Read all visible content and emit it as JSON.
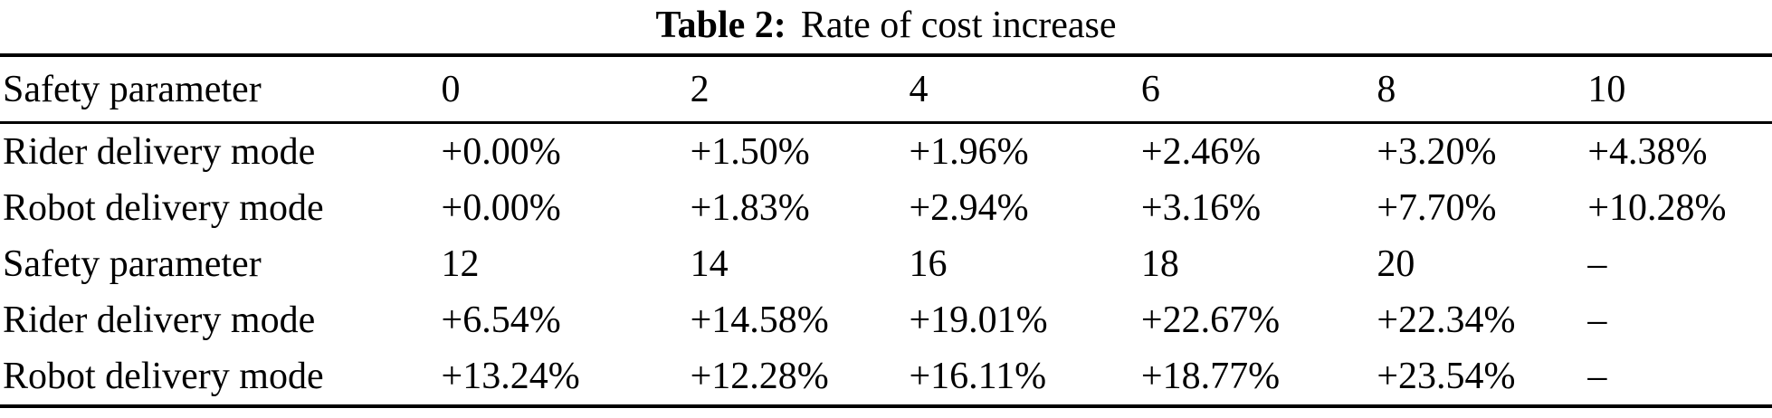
{
  "caption": {
    "label": "Table 2:",
    "text": "Rate of cost increase"
  },
  "table": {
    "rows": [
      {
        "cells": [
          "Safety parameter",
          "0",
          "2",
          "4",
          "6",
          "8",
          "10"
        ]
      },
      {
        "cells": [
          "Rider delivery mode",
          "+0.00%",
          "+1.50%",
          "+1.96%",
          "+2.46%",
          "+3.20%",
          "+4.38%"
        ]
      },
      {
        "cells": [
          "Robot delivery mode",
          "+0.00%",
          "+1.83%",
          "+2.94%",
          "+3.16%",
          "+7.70%",
          "+10.28%"
        ]
      },
      {
        "cells": [
          "Safety parameter",
          "12",
          "14",
          "16",
          "18",
          "20",
          "–"
        ]
      },
      {
        "cells": [
          "Rider delivery mode",
          "+6.54%",
          "+14.58%",
          "+19.01%",
          "+22.67%",
          "+22.34%",
          "–"
        ]
      },
      {
        "cells": [
          "Robot delivery mode",
          "+13.24%",
          "+12.28%",
          "+16.11%",
          "+18.77%",
          "+23.54%",
          "–"
        ]
      }
    ],
    "column_widths_percent": [
      24.9,
      14.05,
      12.35,
      13.1,
      13.3,
      11.9,
      10.4
    ]
  },
  "chart_data": {
    "type": "table",
    "title": "Table 2: Rate of cost increase",
    "x_variable": "Safety parameter",
    "x": [
      0,
      2,
      4,
      6,
      8,
      10,
      12,
      14,
      16,
      18,
      20
    ],
    "series": [
      {
        "name": "Rider delivery mode",
        "values_percent": [
          0.0,
          1.5,
          1.96,
          2.46,
          3.2,
          4.38,
          6.54,
          14.58,
          19.01,
          22.67,
          22.34
        ]
      },
      {
        "name": "Robot delivery mode",
        "values_percent": [
          0.0,
          1.83,
          2.94,
          3.16,
          7.7,
          10.28,
          13.24,
          12.28,
          16.11,
          18.77,
          23.54
        ]
      }
    ]
  }
}
